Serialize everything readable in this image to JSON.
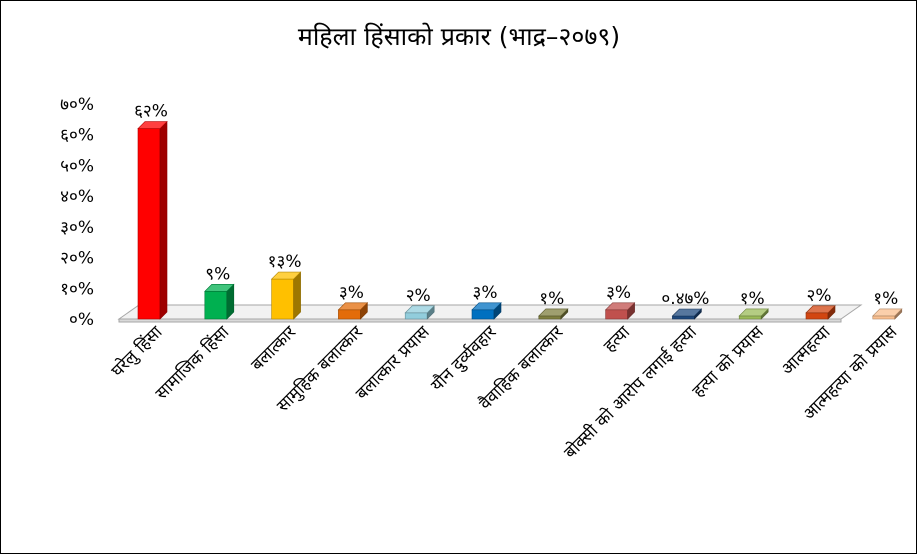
{
  "chart_data": {
    "type": "bar",
    "title": "महिला हिंसाको प्रकार (भाद्र–२०७९)",
    "xlabel": "",
    "ylabel": "",
    "ylim": [
      0,
      70
    ],
    "y_ticks": [
      0,
      10,
      20,
      30,
      40,
      50,
      60,
      70
    ],
    "y_tick_labels": [
      "०%",
      "१०%",
      "२०%",
      "३०%",
      "४०%",
      "५०%",
      "६०%",
      "७०%"
    ],
    "grid": false,
    "legend": "none",
    "categories": [
      "घरेलु हिंसा",
      "सामाजिक हिंसा",
      "बलात्कार",
      "सामुहिक बलात्कार",
      "बलात्कार प्रयास",
      "यौन दुर्व्यवहार",
      "वैवाहिक बलात्कार",
      "हत्या",
      "बोक्सी को आरोप लगाई हत्या",
      "हत्या को प्रयास",
      "आत्महत्या",
      "आत्महत्या को प्रयास"
    ],
    "values": [
      62,
      9,
      13,
      3,
      2,
      3,
      1,
      3,
      0.47,
      1,
      2,
      1
    ],
    "data_labels": [
      "६२%",
      "९%",
      "१३%",
      "३%",
      "२%",
      "३%",
      "१%",
      "३%",
      "०.४७%",
      "१%",
      "२%",
      "१%"
    ],
    "colors": [
      "#ff0000",
      "#00b050",
      "#ffc000",
      "#e36c09",
      "#92cddc",
      "#0070c0",
      "#7f7f3f",
      "#c0504d",
      "#1f497d",
      "#9bbb59",
      "#d24611",
      "#fabf8f"
    ]
  }
}
